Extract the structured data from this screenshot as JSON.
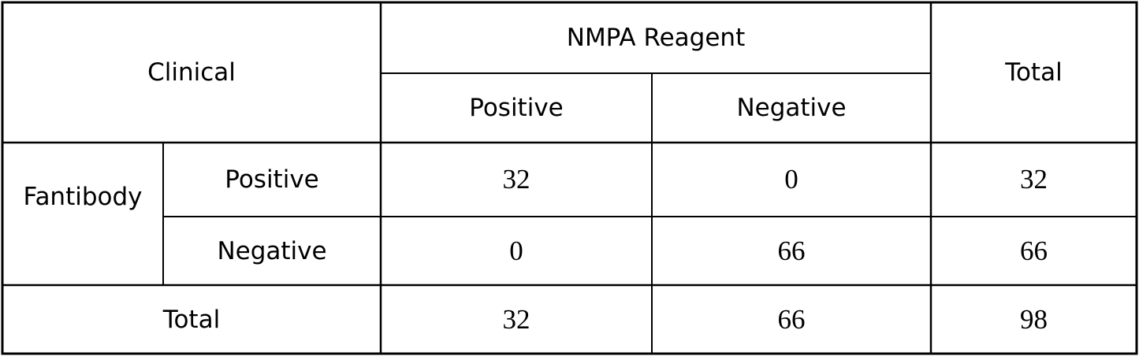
{
  "table": {
    "corner": "Clinical",
    "group_header": "NMPA Reagent",
    "total_header": "Total",
    "col_headers": [
      "Positive",
      "Negative"
    ],
    "row_group": "Fantibody",
    "rows": [
      {
        "label": "Positive",
        "values": [
          32,
          0
        ],
        "total": 32
      },
      {
        "label": "Negative",
        "values": [
          0,
          66
        ],
        "total": 66
      }
    ],
    "total_row": {
      "label": "Total",
      "values": [
        32,
        66
      ],
      "total": 98
    }
  }
}
